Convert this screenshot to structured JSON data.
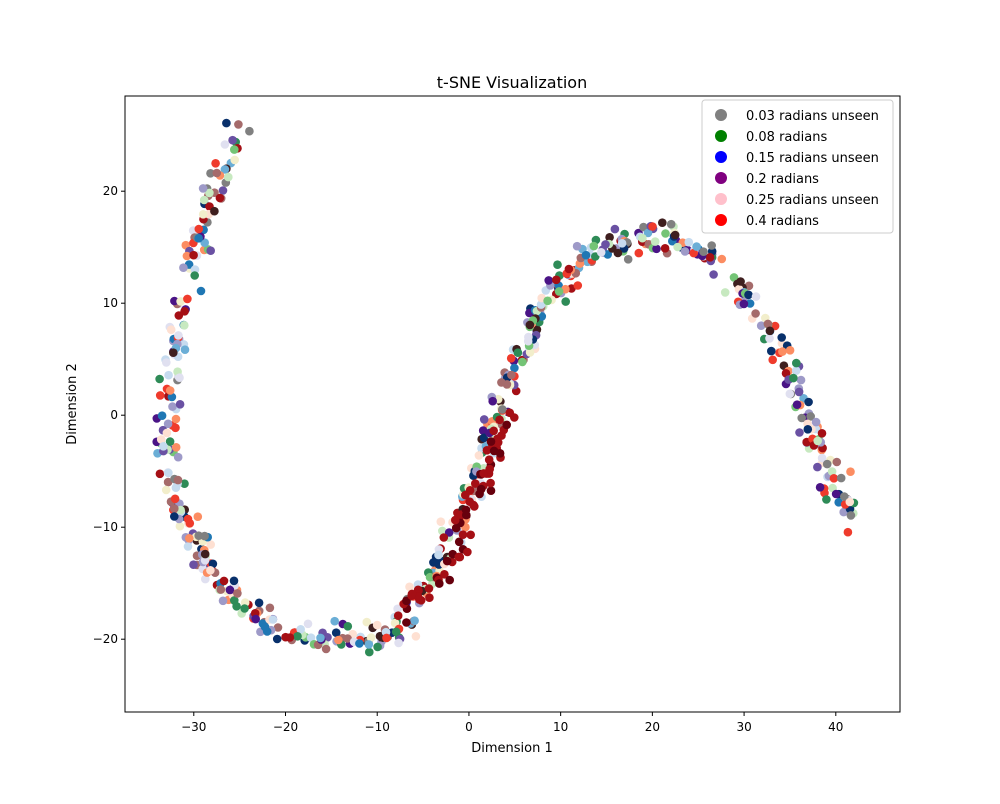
{
  "chart_data": {
    "type": "scatter",
    "title": "t-SNE Visualization",
    "xlabel": "Dimension 1",
    "ylabel": "Dimension 2",
    "xlim": [
      -37.5,
      47
    ],
    "ylim": [
      -26.5,
      28.5
    ],
    "xticks": [
      -30,
      -20,
      -10,
      0,
      10,
      20,
      30,
      40
    ],
    "yticks": [
      -20,
      -10,
      0,
      10,
      20
    ],
    "xtick_labels": [
      "−30",
      "−20",
      "−10",
      "0",
      "10",
      "20",
      "30",
      "40"
    ],
    "ytick_labels": [
      "−20",
      "−10",
      "0",
      "10",
      "20"
    ],
    "grid": false,
    "legend_position": "top-right",
    "legend": [
      {
        "label": "0.03 radians unseen",
        "color": "#808080"
      },
      {
        "label": "0.08 radians",
        "color": "#008000"
      },
      {
        "label": "0.15 radians unseen",
        "color": "#0000ff"
      },
      {
        "label": "0.2 radians",
        "color": "#800080"
      },
      {
        "label": "0.25 radians unseen",
        "color": "#ffc0cb"
      },
      {
        "label": "0.4 radians",
        "color": "#ff0000"
      }
    ],
    "clusters": [
      {
        "name": "left arc",
        "path": [
          [
            -25,
            26
          ],
          [
            -28,
            19
          ],
          [
            -30,
            13
          ],
          [
            -32,
            6
          ],
          [
            -33,
            -1
          ],
          [
            -32,
            -7
          ],
          [
            -30,
            -11
          ],
          [
            -27,
            -15
          ],
          [
            -23,
            -18
          ],
          [
            -17,
            -20
          ],
          [
            -11,
            -20
          ],
          [
            -7,
            -19
          ]
        ]
      },
      {
        "name": "middle rise",
        "path": [
          [
            -7,
            -18
          ],
          [
            -3,
            -13
          ],
          [
            0,
            -7
          ],
          [
            2,
            -2
          ],
          [
            4,
            2
          ],
          [
            6,
            6
          ],
          [
            8,
            10
          ],
          [
            11,
            13
          ],
          [
            15,
            15
          ],
          [
            20,
            16
          ],
          [
            25,
            15
          ],
          [
            30,
            11
          ],
          [
            34,
            6
          ],
          [
            37,
            0
          ],
          [
            39,
            -5
          ],
          [
            42,
            -10
          ]
        ]
      },
      {
        "name": "inner dark red band",
        "path": [
          [
            -8,
            -18
          ],
          [
            -4,
            -15
          ],
          [
            -1,
            -11
          ],
          [
            1,
            -7
          ],
          [
            3,
            -3
          ],
          [
            5,
            1
          ]
        ]
      }
    ],
    "point_colors": [
      "#808080",
      "#2e8b57",
      "#6baed6",
      "#e0e0f0",
      "#a56b6b",
      "#6a51a3",
      "#fc8d62",
      "#08306b",
      "#a50f15",
      "#c6dbef",
      "#c7e9c0",
      "#fee0d2",
      "#3f1f1f",
      "#4a1486",
      "#ef3b2c",
      "#f2eecb",
      "#1f77b4",
      "#9e9ac8",
      "#74c476"
    ]
  }
}
